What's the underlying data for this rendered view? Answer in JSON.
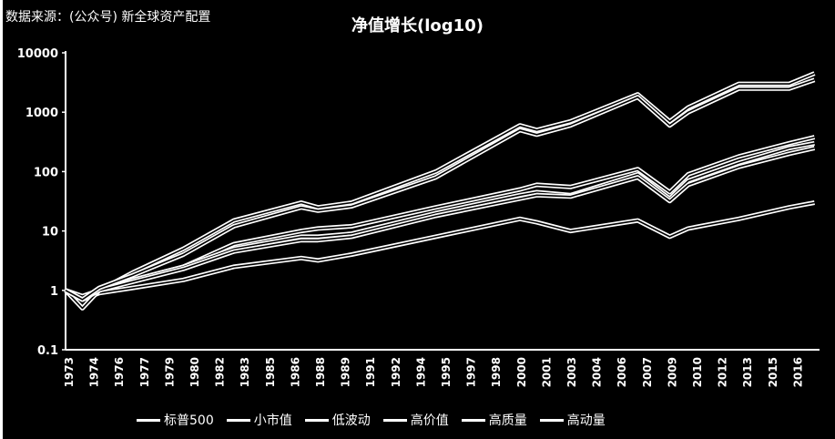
{
  "source_note": "数据来源：(公众号) 新全球资产配置",
  "chart_data": {
    "type": "line",
    "title": "净值增长(log10)",
    "y_scale": "log10",
    "ylim": [
      0.1,
      10000
    ],
    "yticks": [
      "0.1",
      "1",
      "10",
      "100",
      "1000",
      "10000"
    ],
    "ytick_values": [
      0.1,
      1,
      10,
      100,
      1000,
      10000
    ],
    "grid": false,
    "legend_position": "bottom",
    "xtick_labels": [
      "1973",
      "1974",
      "1976",
      "1977",
      "1979",
      "1980",
      "1982",
      "1983",
      "1985",
      "1986",
      "1988",
      "1989",
      "1991",
      "1992",
      "1994",
      "1995",
      "1997",
      "1998",
      "2000",
      "2001",
      "2003",
      "2004",
      "2006",
      "2007",
      "2009",
      "2010",
      "2012",
      "2013",
      "2015",
      "2016"
    ],
    "x": [
      1973,
      1974,
      1975,
      1977,
      1980,
      1983,
      1987,
      1988,
      1990,
      1995,
      2000,
      2001,
      2003,
      2007,
      2008.9,
      2010,
      2013,
      2016,
      2017.5
    ],
    "series": [
      {
        "name": "标普500",
        "color": "#ffffff",
        "values": [
          1,
          0.7,
          0.9,
          1.1,
          1.5,
          2.5,
          3.5,
          3.2,
          4,
          8,
          16,
          14,
          10,
          15,
          8,
          11,
          16,
          25,
          30
        ]
      },
      {
        "name": "小市值",
        "color": "#ffffff",
        "values": [
          1,
          0.5,
          1.0,
          2.0,
          5,
          15,
          30,
          25,
          30,
          100,
          600,
          500,
          700,
          2000,
          700,
          1200,
          3000,
          3000,
          4500
        ]
      },
      {
        "name": "低波动",
        "color": "#ffffff",
        "values": [
          1,
          0.8,
          1.0,
          1.5,
          2.5,
          6,
          10,
          11,
          12,
          25,
          50,
          60,
          55,
          110,
          45,
          90,
          180,
          300,
          380
        ]
      },
      {
        "name": "高价值",
        "color": "#ffffff",
        "values": [
          1,
          0.7,
          1.0,
          1.5,
          2.5,
          5,
          8,
          8,
          9,
          20,
          40,
          45,
          40,
          90,
          35,
          70,
          140,
          250,
          300
        ]
      },
      {
        "name": "高质量",
        "color": "#ffffff",
        "values": [
          1,
          0.7,
          1.0,
          1.4,
          2.3,
          4.5,
          7,
          7,
          8,
          18,
          35,
          40,
          38,
          80,
          32,
          60,
          120,
          200,
          250
        ]
      },
      {
        "name": "高动量",
        "color": "#ffffff",
        "values": [
          1,
          0.7,
          1.1,
          1.8,
          4,
          12,
          25,
          22,
          26,
          80,
          500,
          420,
          600,
          1800,
          600,
          1000,
          2500,
          2500,
          3500
        ]
      }
    ]
  }
}
